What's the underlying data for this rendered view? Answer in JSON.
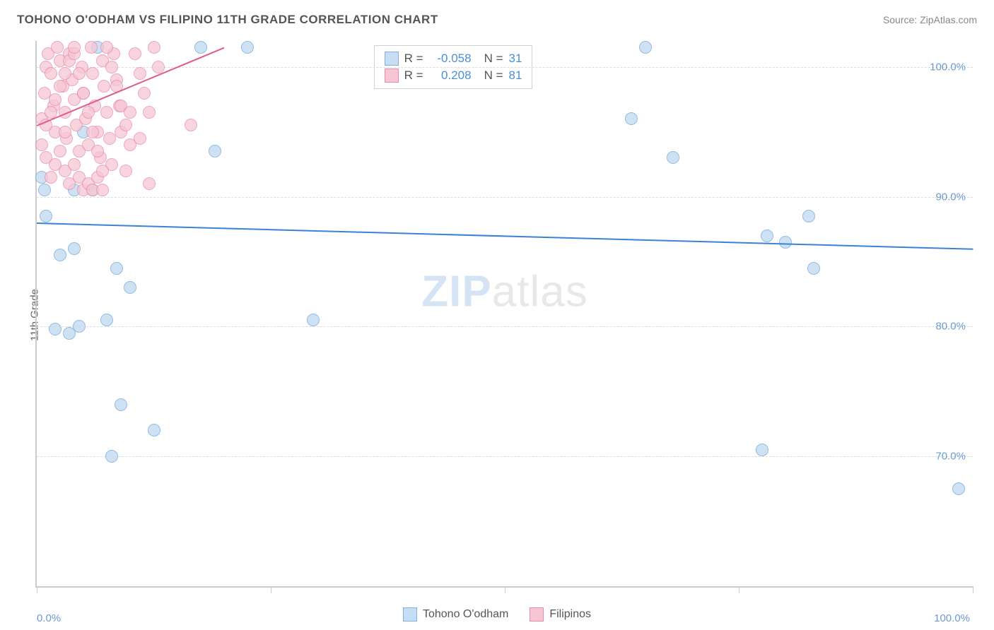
{
  "header": {
    "title": "TOHONO O'ODHAM VS FILIPINO 11TH GRADE CORRELATION CHART",
    "source": "Source: ZipAtlas.com"
  },
  "ylabel": "11th Grade",
  "watermark_a": "ZIP",
  "watermark_b": "atlas",
  "chart": {
    "type": "scatter",
    "background_color": "#ffffff",
    "grid_color": "#dddddd",
    "axis_color": "#cccccc",
    "tick_label_color": "#6b9bd1",
    "tick_fontsize": 15,
    "ylabel_fontsize": 15,
    "xlim": [
      0,
      100
    ],
    "ylim": [
      60,
      102
    ],
    "yticks": [
      70,
      80,
      90,
      100
    ],
    "ytick_labels": [
      "70.0%",
      "80.0%",
      "90.0%",
      "100.0%"
    ],
    "xticks": [
      0,
      25,
      50,
      75,
      100
    ],
    "xtick_labels": {
      "start": "0.0%",
      "end": "100.0%"
    },
    "marker_radius": 9,
    "marker_border_width": 1.5,
    "series": [
      {
        "name": "Tohono O'odham",
        "fill": "#c7ddf3",
        "stroke": "#7fb0e0",
        "opacity": 0.85,
        "R": "-0.058",
        "N": "31",
        "trend": {
          "x1": 0,
          "y1": 88.0,
          "x2": 100,
          "y2": 86.0,
          "color": "#3b82d6",
          "width": 2
        },
        "points": [
          [
            0.5,
            91.5
          ],
          [
            0.8,
            90.5
          ],
          [
            1.0,
            88.5
          ],
          [
            4.0,
            90.5
          ],
          [
            6.5,
            101.5
          ],
          [
            2.5,
            85.5
          ],
          [
            4.0,
            86.0
          ],
          [
            8.5,
            84.5
          ],
          [
            3.5,
            79.5
          ],
          [
            4.5,
            80.0
          ],
          [
            7.5,
            80.5
          ],
          [
            2.0,
            79.8
          ],
          [
            10.0,
            83.0
          ],
          [
            17.5,
            101.5
          ],
          [
            19.0,
            93.5
          ],
          [
            22.5,
            101.5
          ],
          [
            9.0,
            74.0
          ],
          [
            12.5,
            72.0
          ],
          [
            8.0,
            70.0
          ],
          [
            29.5,
            80.5
          ],
          [
            65.0,
            101.5
          ],
          [
            63.5,
            96.0
          ],
          [
            68.0,
            93.0
          ],
          [
            78.0,
            87.0
          ],
          [
            80.0,
            86.5
          ],
          [
            82.5,
            88.5
          ],
          [
            83.0,
            84.5
          ],
          [
            77.5,
            70.5
          ],
          [
            98.5,
            67.5
          ],
          [
            6.0,
            90.5
          ],
          [
            5.0,
            95.0
          ]
        ]
      },
      {
        "name": "Filipinos",
        "fill": "#f6c6d5",
        "stroke": "#e88ba8",
        "opacity": 0.75,
        "R": "0.208",
        "N": "81",
        "trend": {
          "x1": 0,
          "y1": 95.5,
          "x2": 20,
          "y2": 101.5,
          "color": "#e05a8a",
          "width": 2
        },
        "points": [
          [
            0.5,
            96.0
          ],
          [
            0.8,
            98.0
          ],
          [
            1.0,
            100.0
          ],
          [
            1.2,
            101.0
          ],
          [
            1.5,
            99.5
          ],
          [
            1.8,
            97.0
          ],
          [
            2.0,
            95.0
          ],
          [
            2.2,
            101.5
          ],
          [
            2.5,
            100.5
          ],
          [
            2.8,
            98.5
          ],
          [
            3.0,
            96.5
          ],
          [
            3.2,
            94.5
          ],
          [
            3.5,
            101.0
          ],
          [
            3.8,
            99.0
          ],
          [
            4.0,
            97.5
          ],
          [
            4.2,
            95.5
          ],
          [
            4.5,
            93.5
          ],
          [
            4.8,
            100.0
          ],
          [
            5.0,
            98.0
          ],
          [
            5.2,
            96.0
          ],
          [
            5.5,
            94.0
          ],
          [
            5.8,
            101.5
          ],
          [
            6.0,
            99.5
          ],
          [
            6.2,
            97.0
          ],
          [
            6.5,
            95.0
          ],
          [
            6.8,
            93.0
          ],
          [
            7.0,
            100.5
          ],
          [
            7.2,
            98.5
          ],
          [
            7.5,
            96.5
          ],
          [
            7.8,
            94.5
          ],
          [
            8.0,
            92.5
          ],
          [
            8.2,
            101.0
          ],
          [
            8.5,
            99.0
          ],
          [
            8.8,
            97.0
          ],
          [
            9.0,
            95.0
          ],
          [
            1.0,
            93.0
          ],
          [
            1.5,
            91.5
          ],
          [
            2.0,
            92.5
          ],
          [
            2.5,
            93.5
          ],
          [
            3.0,
            92.0
          ],
          [
            3.5,
            91.0
          ],
          [
            4.0,
            92.5
          ],
          [
            4.5,
            91.5
          ],
          [
            5.0,
            90.5
          ],
          [
            5.5,
            91.0
          ],
          [
            6.0,
            90.5
          ],
          [
            6.5,
            91.5
          ],
          [
            7.0,
            90.5
          ],
          [
            0.5,
            94.0
          ],
          [
            1.0,
            95.5
          ],
          [
            1.5,
            96.5
          ],
          [
            2.0,
            97.5
          ],
          [
            2.5,
            98.5
          ],
          [
            3.0,
            99.5
          ],
          [
            3.5,
            100.5
          ],
          [
            4.0,
            101.0
          ],
          [
            4.5,
            99.5
          ],
          [
            5.0,
            98.0
          ],
          [
            5.5,
            96.5
          ],
          [
            6.0,
            95.0
          ],
          [
            6.5,
            93.5
          ],
          [
            7.0,
            92.0
          ],
          [
            7.5,
            101.5
          ],
          [
            8.0,
            100.0
          ],
          [
            8.5,
            98.5
          ],
          [
            9.0,
            97.0
          ],
          [
            9.5,
            95.5
          ],
          [
            10.0,
            94.0
          ],
          [
            10.5,
            101.0
          ],
          [
            11.0,
            99.5
          ],
          [
            11.5,
            98.0
          ],
          [
            12.0,
            96.5
          ],
          [
            12.5,
            101.5
          ],
          [
            13.0,
            100.0
          ],
          [
            10.0,
            96.5
          ],
          [
            11.0,
            94.5
          ],
          [
            16.5,
            95.5
          ],
          [
            9.5,
            92.0
          ],
          [
            12.0,
            91.0
          ],
          [
            4.0,
            101.5
          ],
          [
            3.0,
            95.0
          ]
        ]
      }
    ]
  },
  "bottom_legend": [
    {
      "label": "Tohono O'odham"
    },
    {
      "label": "Filipinos"
    }
  ]
}
